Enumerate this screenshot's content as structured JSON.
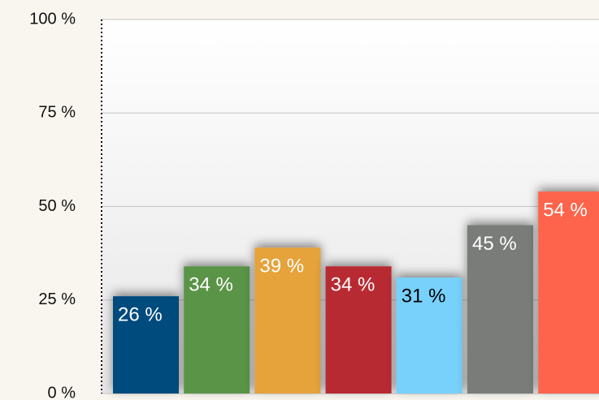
{
  "chart_data": {
    "type": "bar",
    "categories": [
      null,
      null,
      null,
      null,
      null,
      null,
      null
    ],
    "values": [
      26,
      34,
      39,
      34,
      31,
      45,
      54
    ],
    "value_labels": [
      "26 %",
      "34 %",
      "39 %",
      "34 %",
      "31 %",
      "45 %",
      "54 %"
    ],
    "colors": [
      "#004b7e",
      "#5a9447",
      "#e6a23b",
      "#b82b31",
      "#77d1fb",
      "#7a7b7a",
      "#fe634b"
    ],
    "label_colors": [
      "#ffffff",
      "#ffffff",
      "#ffffff",
      "#ffffff",
      "#000000",
      "#ffffff",
      "#ffffff"
    ],
    "ylim": [
      0,
      100
    ],
    "yticks": [
      {
        "value": 0,
        "label": "0 %"
      },
      {
        "value": 25,
        "label": "25 %"
      },
      {
        "value": 50,
        "label": "50 %"
      },
      {
        "value": 75,
        "label": "75 %"
      },
      {
        "value": 100,
        "label": "100 %"
      }
    ],
    "grid": true
  }
}
